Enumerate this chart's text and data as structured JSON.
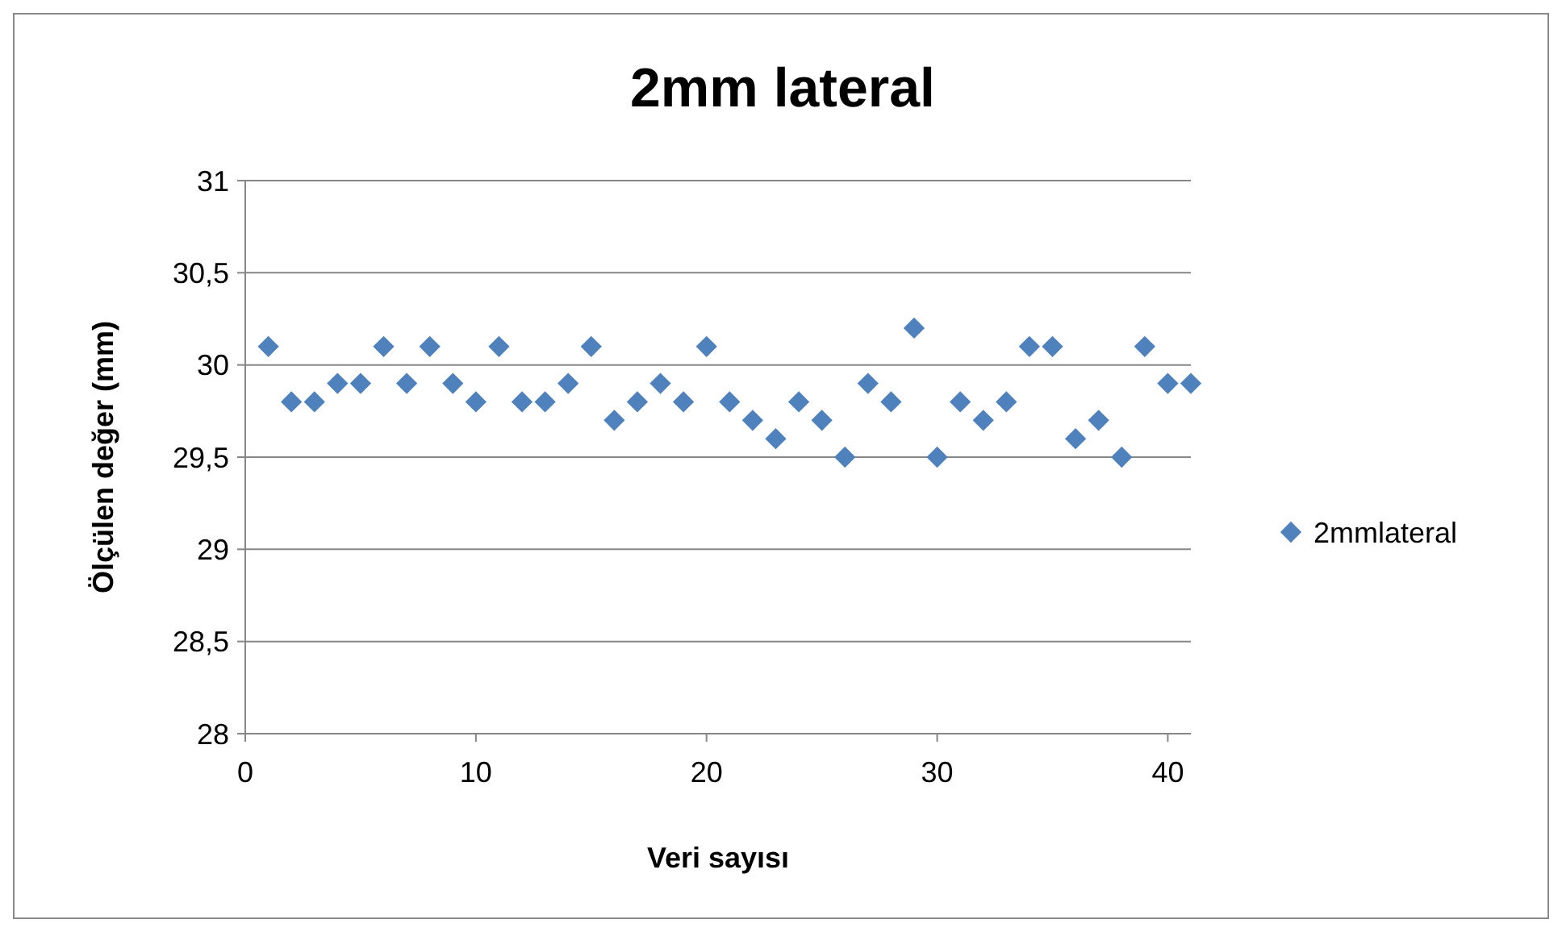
{
  "chart_data": {
    "type": "scatter",
    "title": "2mm lateral",
    "xlabel": "Veri sayısı",
    "ylabel": "Ölçülen değer (mm)",
    "x": [
      1,
      2,
      3,
      4,
      5,
      6,
      7,
      8,
      9,
      10,
      11,
      12,
      13,
      14,
      15,
      16,
      17,
      18,
      19,
      20,
      21,
      22,
      23,
      24,
      25,
      26,
      27,
      28,
      29,
      30,
      31,
      32,
      33,
      34,
      35,
      36,
      37,
      38,
      39,
      40,
      41
    ],
    "series": [
      {
        "name": "2mmlateral",
        "color": "#4f81bd",
        "values": [
          30.1,
          29.8,
          29.8,
          29.9,
          29.9,
          30.1,
          29.9,
          30.1,
          29.9,
          29.8,
          30.1,
          29.8,
          29.8,
          29.9,
          30.1,
          29.7,
          29.8,
          29.9,
          29.8,
          30.1,
          29.8,
          29.7,
          29.6,
          29.8,
          29.7,
          29.5,
          29.9,
          29.8,
          30.2,
          29.5,
          29.8,
          29.7,
          29.8,
          30.1,
          30.1,
          29.6,
          29.7,
          29.5,
          30.1,
          29.9,
          29.9
        ]
      }
    ],
    "xlim": [
      0,
      41
    ],
    "xticks": [
      0,
      10,
      20,
      30,
      40
    ],
    "ylim": [
      28,
      31
    ],
    "yticks": [
      28,
      {
        "value": 28.5,
        "label": "28,5"
      },
      29,
      {
        "value": 29.5,
        "label": "29,5"
      },
      30,
      {
        "value": 30.5,
        "label": "30,5"
      },
      31
    ],
    "grid": "y",
    "legend": "right",
    "marker": "diamond"
  }
}
